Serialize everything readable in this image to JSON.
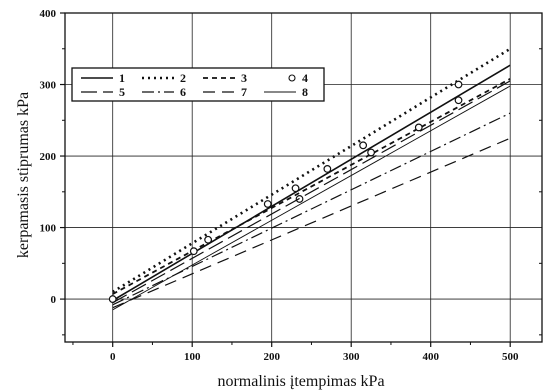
{
  "chart_data": {
    "type": "line",
    "title": "",
    "xlabel": "normalinis įtempimas kPa",
    "ylabel": "kerpamasis stiprumas kPa",
    "xlim": [
      -60,
      540
    ],
    "ylim": [
      -60,
      400
    ],
    "xticks": [
      0,
      100,
      200,
      300,
      400,
      500
    ],
    "yticks": [
      0,
      100,
      200,
      300,
      400
    ],
    "grid": true,
    "legend_position": "top-left",
    "series": [
      {
        "name": "1",
        "style": "solid",
        "marker": "none",
        "x": [
          0,
          500
        ],
        "y": [
          -2,
          327
        ]
      },
      {
        "name": "2",
        "style": "dotted-arrow",
        "marker": "none",
        "x": [
          0,
          500
        ],
        "y": [
          10,
          350
        ]
      },
      {
        "name": "3",
        "style": "dashed-arrow",
        "marker": "none",
        "x": [
          0,
          500
        ],
        "y": [
          7,
          308
        ]
      },
      {
        "name": "4",
        "style": "none",
        "marker": "circle",
        "x": [
          0,
          102,
          120,
          195,
          230,
          235,
          270,
          315,
          325,
          385,
          435,
          435
        ],
        "y": [
          0,
          67,
          83,
          133,
          155,
          140,
          182,
          215,
          205,
          240,
          300,
          278
        ]
      },
      {
        "name": "5",
        "style": "long-dash",
        "marker": "none",
        "x": [
          0,
          500
        ],
        "y": [
          -5,
          305
        ]
      },
      {
        "name": "6",
        "style": "dash-dot",
        "marker": "none",
        "x": [
          0,
          500
        ],
        "y": [
          -8,
          260
        ]
      },
      {
        "name": "7",
        "style": "dash",
        "marker": "none",
        "x": [
          0,
          500
        ],
        "y": [
          -12,
          225
        ]
      },
      {
        "name": "8",
        "style": "thin-solid",
        "marker": "none",
        "x": [
          0,
          500
        ],
        "y": [
          -15,
          298
        ]
      }
    ]
  }
}
